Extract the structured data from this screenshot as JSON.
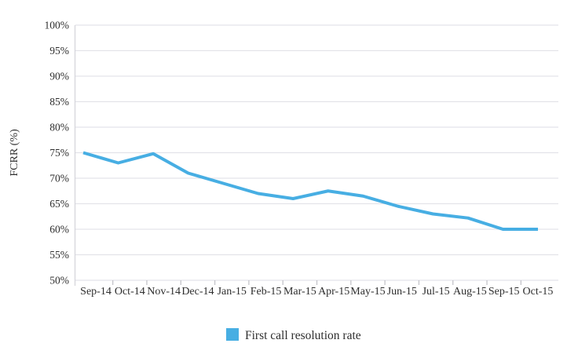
{
  "chart_data": {
    "type": "line",
    "title": "",
    "xlabel": "",
    "ylabel": "FCRR (%)",
    "categories": [
      "Sep-14",
      "Oct-14",
      "Nov-14",
      "Dec-14",
      "Jan-15",
      "Feb-15",
      "Mar-15",
      "Apr-15",
      "May-15",
      "Jun-15",
      "Jul-15",
      "Aug-15",
      "Sep-15",
      "Oct-15"
    ],
    "series": [
      {
        "name": "First call resolution rate",
        "values": [
          75,
          73,
          74.8,
          71,
          69,
          67,
          66,
          67.5,
          66.5,
          64.5,
          63,
          62.2,
          60,
          60
        ],
        "color": "#47AEE3"
      }
    ],
    "ylim": [
      50,
      100
    ],
    "ytick_step": 5,
    "ytick_suffix": "%",
    "grid": "horizontal-only",
    "legend_position": "bottom"
  },
  "axes": {
    "y_title": "FCRR (%)"
  },
  "legend": {
    "label": "First call resolution rate",
    "swatch_color": "#47AEE3"
  },
  "colors": {
    "line": "#47AEE3",
    "gridline": "#e3e3e9",
    "axis_line": "#d6d6dc",
    "tick_mark": "#c4c4ca",
    "text": "#2e2e2e",
    "background": "#ffffff"
  }
}
